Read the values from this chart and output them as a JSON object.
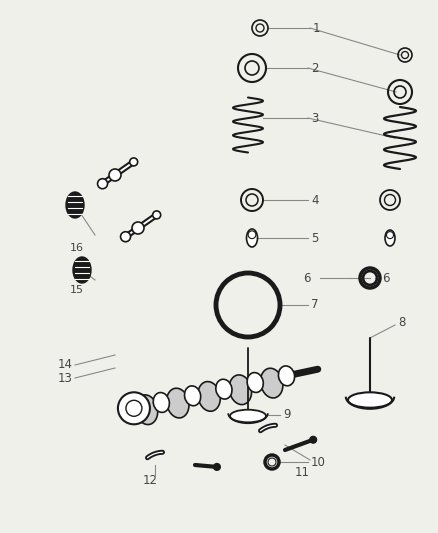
{
  "background_color": "#f0f0eb",
  "fig_width": 4.38,
  "fig_height": 5.33,
  "dpi": 100,
  "label_color": "#444444",
  "line_color": "#888888",
  "dark": "#1a1a1a"
}
